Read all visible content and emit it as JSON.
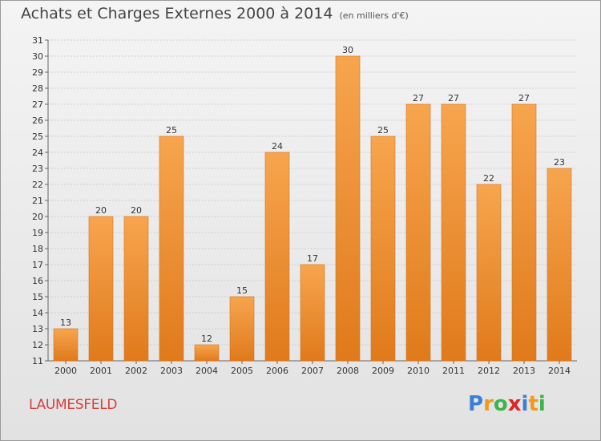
{
  "header": {
    "title": "Achats et Charges Externes 2000 à 2014",
    "unit": "(en milliers d'€)"
  },
  "commune": "LAUMESFELD",
  "logo": {
    "letters": [
      "P",
      "r",
      "o",
      "x",
      "i",
      "t",
      "i"
    ],
    "colors": [
      "#3a7fd5",
      "#f09a1c",
      "#3ab54a",
      "#e02424",
      "#3a7fd5",
      "#f09a1c",
      "#3ab54a"
    ]
  },
  "chart_data": {
    "type": "bar",
    "title": "Achats et Charges Externes 2000 à 2014",
    "subtitle": "(en milliers d'€)",
    "xlabel": "",
    "ylabel": "",
    "categories": [
      "2000",
      "2001",
      "2002",
      "2003",
      "2004",
      "2005",
      "2006",
      "2007",
      "2008",
      "2009",
      "2010",
      "2011",
      "2012",
      "2013",
      "2014"
    ],
    "values": [
      13,
      20,
      20,
      25,
      12,
      15,
      24,
      17,
      30,
      25,
      27,
      27,
      22,
      27,
      23
    ],
    "ylim": [
      11,
      31
    ],
    "yticks": [
      11,
      12,
      13,
      14,
      15,
      16,
      17,
      18,
      19,
      20,
      21,
      22,
      23,
      24,
      25,
      26,
      27,
      28,
      29,
      30,
      31
    ],
    "grid": true,
    "bar_color_top": "#f7a54e",
    "bar_color_bottom": "#e07a1b"
  }
}
